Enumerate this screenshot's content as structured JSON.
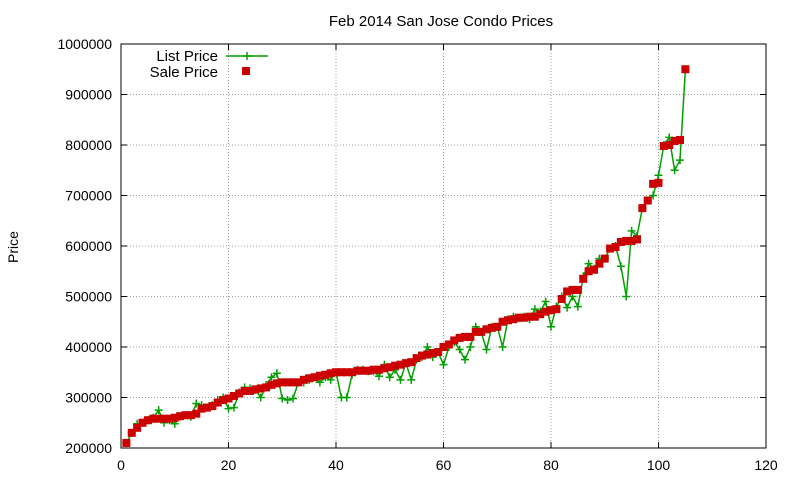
{
  "chart_data": {
    "type": "line",
    "title": "Feb 2014 San Jose Condo Prices",
    "xlabel": "",
    "ylabel": "Price",
    "xlim": [
      0,
      120
    ],
    "ylim": [
      200000,
      1000000
    ],
    "x_ticks": [
      0,
      20,
      40,
      60,
      80,
      100,
      120
    ],
    "y_ticks": [
      200000,
      300000,
      400000,
      500000,
      600000,
      700000,
      800000,
      900000,
      1000000
    ],
    "grid": true,
    "legend_position": "top-left",
    "series": [
      {
        "name": "List Price",
        "style": "line-with-plus",
        "color": "#00a000",
        "x": [
          1,
          2,
          3,
          4,
          5,
          6,
          7,
          8,
          9,
          10,
          11,
          12,
          13,
          14,
          15,
          16,
          17,
          18,
          19,
          20,
          21,
          22,
          23,
          24,
          25,
          26,
          27,
          28,
          29,
          30,
          31,
          32,
          33,
          34,
          35,
          36,
          37,
          38,
          39,
          40,
          41,
          42,
          43,
          44,
          45,
          46,
          47,
          48,
          49,
          50,
          51,
          52,
          53,
          54,
          55,
          56,
          57,
          58,
          59,
          60,
          61,
          62,
          63,
          64,
          65,
          66,
          67,
          68,
          69,
          70,
          71,
          72,
          73,
          74,
          75,
          76,
          77,
          78,
          79,
          80,
          81,
          82,
          83,
          84,
          85,
          86,
          87,
          88,
          89,
          90,
          91,
          92,
          93,
          94,
          95,
          96,
          97,
          98,
          99,
          100,
          101,
          102,
          103,
          104,
          105
        ],
        "values": [
          210000,
          230000,
          248000,
          250000,
          255000,
          260000,
          275000,
          250000,
          255000,
          248000,
          262000,
          265000,
          262000,
          288000,
          285000,
          280000,
          285000,
          295000,
          300000,
          278000,
          280000,
          310000,
          320000,
          318000,
          315000,
          300000,
          325000,
          340000,
          348000,
          298000,
          295000,
          298000,
          330000,
          330000,
          335000,
          340000,
          330000,
          340000,
          335000,
          350000,
          300000,
          300000,
          345000,
          355000,
          355000,
          352000,
          352000,
          342000,
          365000,
          340000,
          355000,
          335000,
          368000,
          335000,
          375000,
          380000,
          400000,
          380000,
          390000,
          365000,
          400000,
          410000,
          395000,
          375000,
          400000,
          440000,
          430000,
          395000,
          440000,
          440000,
          400000,
          455000,
          460000,
          458000,
          460000,
          455000,
          475000,
          470000,
          490000,
          440000,
          480000,
          500000,
          478000,
          500000,
          480000,
          540000,
          565000,
          555000,
          575000,
          575000,
          595000,
          600000,
          560000,
          500000,
          630000,
          620000,
          675000,
          690000,
          700000,
          740000,
          800000,
          815000,
          750000,
          770000,
          950000
        ]
      },
      {
        "name": "Sale Price",
        "style": "square-points",
        "color": "#cc0000",
        "x": [
          1,
          2,
          3,
          4,
          5,
          6,
          7,
          8,
          9,
          10,
          11,
          12,
          13,
          14,
          15,
          16,
          17,
          18,
          19,
          20,
          21,
          22,
          23,
          24,
          25,
          26,
          27,
          28,
          29,
          30,
          31,
          32,
          33,
          34,
          35,
          36,
          37,
          38,
          39,
          40,
          41,
          42,
          43,
          44,
          45,
          46,
          47,
          48,
          49,
          50,
          51,
          52,
          53,
          54,
          55,
          56,
          57,
          58,
          59,
          60,
          61,
          62,
          63,
          64,
          65,
          66,
          67,
          68,
          69,
          70,
          71,
          72,
          73,
          74,
          75,
          76,
          77,
          78,
          79,
          80,
          81,
          82,
          83,
          84,
          85,
          86,
          87,
          88,
          89,
          90,
          91,
          92,
          93,
          94,
          95,
          96,
          97,
          98,
          99,
          100,
          101,
          102,
          103,
          104,
          105
        ],
        "values": [
          210000,
          230000,
          240000,
          250000,
          255000,
          258000,
          258000,
          258000,
          258000,
          260000,
          263000,
          265000,
          265000,
          268000,
          278000,
          280000,
          283000,
          290000,
          295000,
          298000,
          303000,
          308000,
          313000,
          313000,
          316000,
          318000,
          320000,
          325000,
          328000,
          330000,
          330000,
          330000,
          330000,
          335000,
          338000,
          340000,
          343000,
          345000,
          348000,
          350000,
          350000,
          350000,
          350000,
          353000,
          353000,
          353000,
          355000,
          355000,
          358000,
          360000,
          363000,
          365000,
          368000,
          370000,
          378000,
          383000,
          385000,
          388000,
          390000,
          400000,
          405000,
          413000,
          418000,
          420000,
          420000,
          430000,
          430000,
          435000,
          438000,
          440000,
          450000,
          453000,
          455000,
          458000,
          458000,
          460000,
          460000,
          465000,
          470000,
          473000,
          475000,
          495000,
          510000,
          513000,
          513000,
          535000,
          550000,
          553000,
          565000,
          575000,
          595000,
          598000,
          608000,
          610000,
          610000,
          613000,
          675000,
          690000,
          723000,
          725000,
          798000,
          800000,
          808000,
          810000,
          950000
        ]
      }
    ]
  }
}
